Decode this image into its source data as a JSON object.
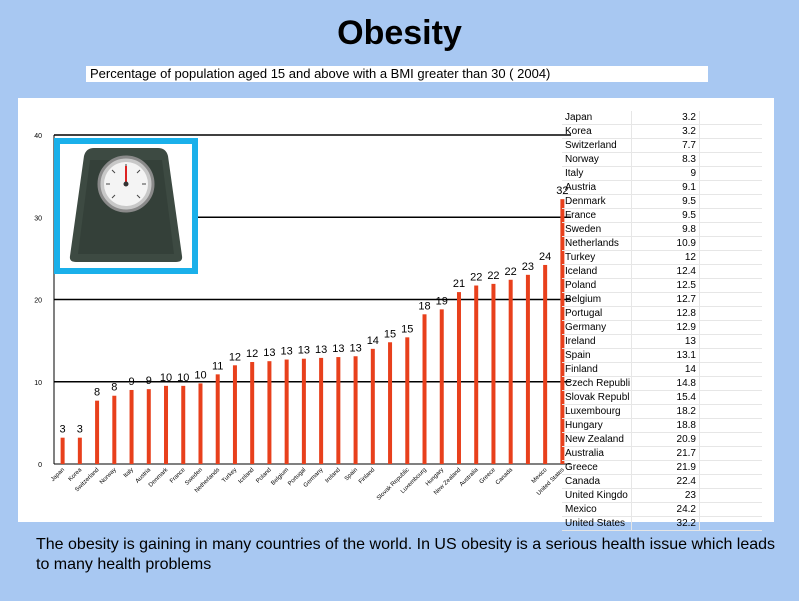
{
  "slide": {
    "title": "Obesity",
    "subtitle": "Percentage of population aged 15 and above with a BMI greater than 30 ( 2004)",
    "caption": "The obesity is gaining in many countries of the world. In US obesity is a serious health issue which leads to many health problems"
  },
  "colors": {
    "bar": "#e8401c",
    "background": "#a8c8f2",
    "frame": "#1ab0ea"
  },
  "image": {
    "icon": "bathroom-scale-icon"
  },
  "table": [
    {
      "label": "Japan",
      "value": "3.2"
    },
    {
      "label": "Korea",
      "value": "3.2"
    },
    {
      "label": "Switzerland",
      "value": "7.7"
    },
    {
      "label": "Norway",
      "value": "8.3"
    },
    {
      "label": "Italy",
      "value": "9"
    },
    {
      "label": "Austria",
      "value": "9.1"
    },
    {
      "label": "Denmark",
      "value": "9.5"
    },
    {
      "label": "France",
      "value": "9.5"
    },
    {
      "label": "Sweden",
      "value": "9.8"
    },
    {
      "label": "Netherlands",
      "value": "10.9"
    },
    {
      "label": "Turkey",
      "value": "12"
    },
    {
      "label": "Iceland",
      "value": "12.4"
    },
    {
      "label": "Poland",
      "value": "12.5"
    },
    {
      "label": "Belgium",
      "value": "12.7"
    },
    {
      "label": "Portugal",
      "value": "12.8"
    },
    {
      "label": "Germany",
      "value": "12.9"
    },
    {
      "label": "Ireland",
      "value": "13"
    },
    {
      "label": "Spain",
      "value": "13.1"
    },
    {
      "label": "Finland",
      "value": "14"
    },
    {
      "label": "Czech Republi",
      "value": "14.8"
    },
    {
      "label": "Slovak Republ",
      "value": "15.4"
    },
    {
      "label": "Luxembourg",
      "value": "18.2"
    },
    {
      "label": "Hungary",
      "value": "18.8"
    },
    {
      "label": "New Zealand",
      "value": "20.9"
    },
    {
      "label": "Australia",
      "value": "21.7"
    },
    {
      "label": "Greece",
      "value": "21.9"
    },
    {
      "label": "Canada",
      "value": "22.4"
    },
    {
      "label": "United Kingdo",
      "value": "23"
    },
    {
      "label": "Mexico",
      "value": "24.2"
    },
    {
      "label": "United States",
      "value": "32.2"
    }
  ],
  "chart_data": {
    "type": "bar",
    "categories": [
      "Japan",
      "Korea",
      "Switzerland",
      "Norway",
      "Italy",
      "Austria",
      "Denmark",
      "France",
      "Sweden",
      "Netherlands",
      "Turkey",
      "Iceland",
      "Poland",
      "Belgium",
      "Portugal",
      "Germany",
      "Ireland",
      "Spain",
      "Finland",
      "Czech Republic",
      "Slovak Republic",
      "Luxembourg",
      "Hungary",
      "New Zealand",
      "Australia",
      "Greece",
      "Canada",
      "United Kingdom",
      "Mexico",
      "United States"
    ],
    "values": [
      3.2,
      3.2,
      7.7,
      8.3,
      9,
      9.1,
      9.5,
      9.5,
      9.8,
      10.9,
      12,
      12.4,
      12.5,
      12.7,
      12.8,
      12.9,
      13,
      13.1,
      14,
      14.8,
      15.4,
      18.2,
      18.8,
      20.9,
      21.7,
      21.9,
      22.4,
      23,
      24.2,
      32.2
    ],
    "data_labels": [
      "3",
      "3",
      "8",
      "8",
      "9",
      "9",
      "10",
      "10",
      "10",
      "11",
      "12",
      "12",
      "13",
      "13",
      "13",
      "13",
      "13",
      "13",
      "14",
      "15",
      "15",
      "18",
      "19",
      "21",
      "22",
      "22",
      "22",
      "23",
      "24",
      "32"
    ],
    "tick_labels": [
      "Japan",
      "Korea",
      "Switzerland",
      "Norway",
      "Italy",
      "Austria",
      "Denmark",
      "France",
      "Sweden",
      "Netherlands",
      "Turkey",
      "Iceland",
      "Poland",
      "Belgium",
      "Portugal",
      "Germany",
      "Ireland",
      "Spain",
      "Finland",
      "",
      "Slovak Republic",
      "Luxembourg",
      "Hungary",
      "New Zealand",
      "Australia",
      "Greece",
      "Canada",
      "",
      "Mexico",
      "United States"
    ],
    "yticks": [
      "0",
      "10",
      "20",
      "30",
      "40"
    ],
    "ylim": [
      0,
      40
    ],
    "grid": true,
    "title": "",
    "xlabel": "",
    "ylabel": ""
  }
}
